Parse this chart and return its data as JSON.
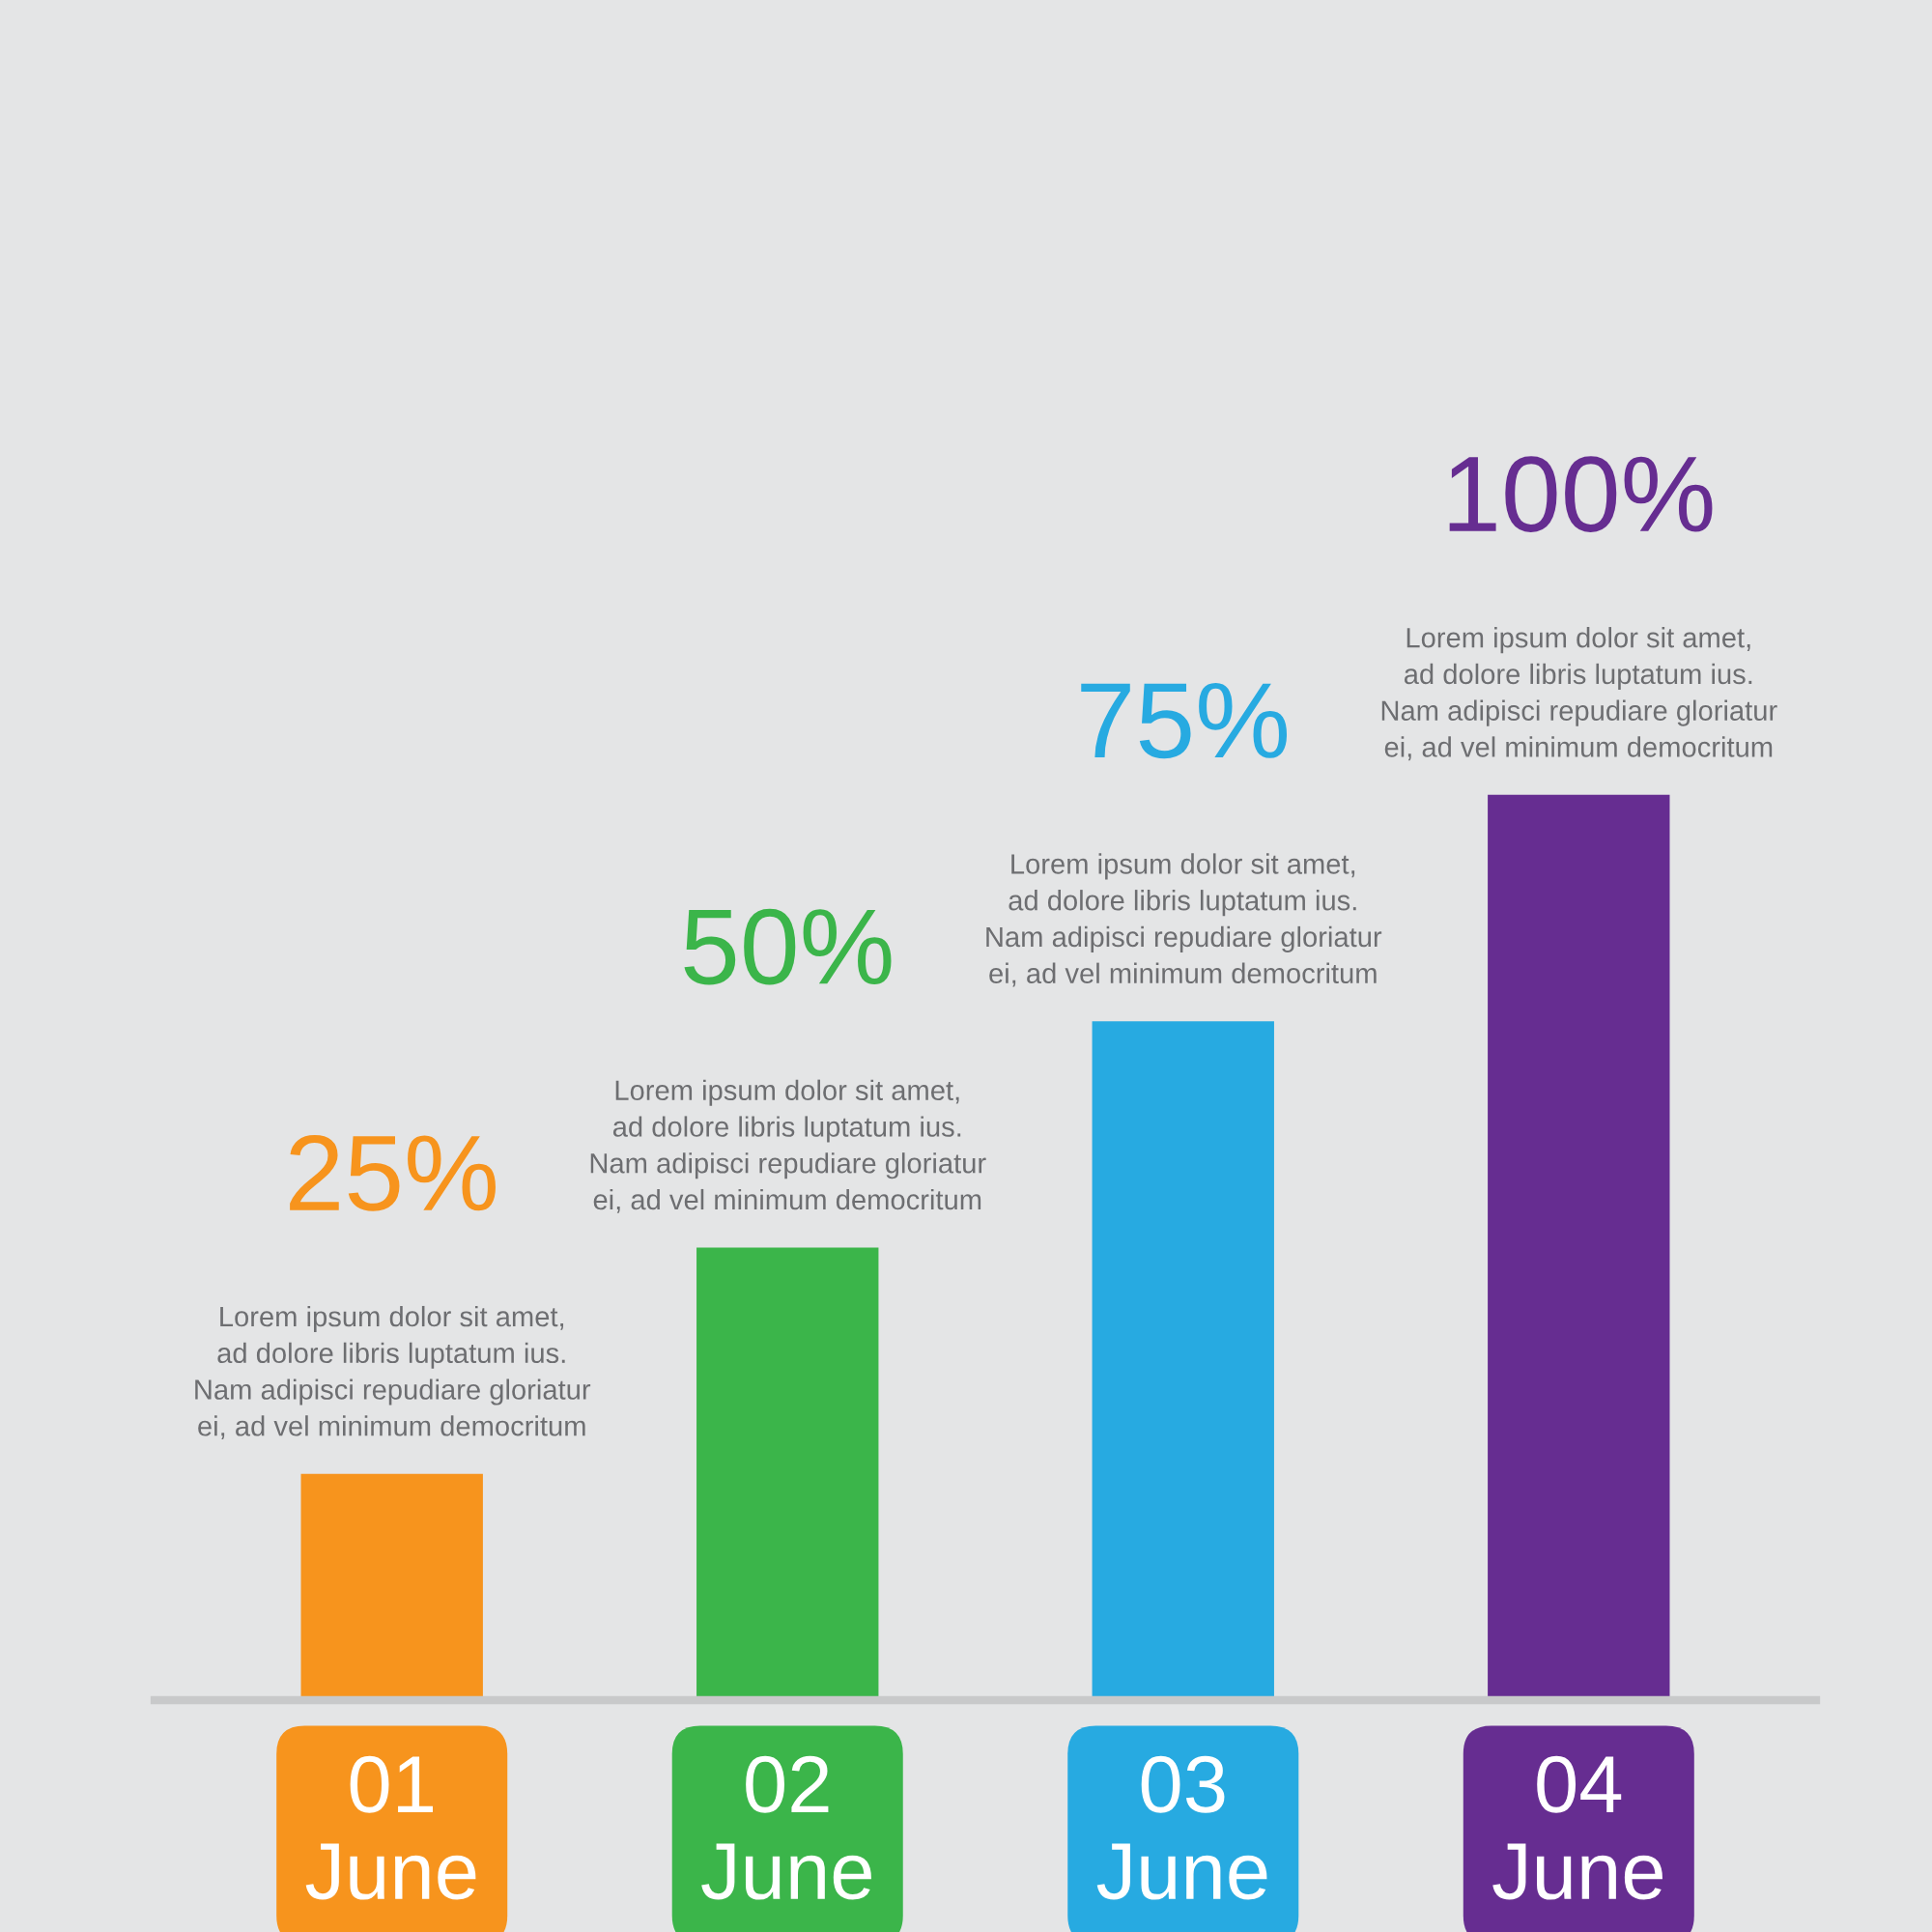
{
  "chart_data": {
    "type": "bar",
    "categories": [
      "01\nJune",
      "02\nJune",
      "03\nJune",
      "04\nJune"
    ],
    "values": [
      25,
      50,
      75,
      100
    ],
    "colors": [
      "#f7941d",
      "#3bb54a",
      "#27aae1",
      "#662d91"
    ],
    "value_labels": [
      "25%",
      "50%",
      "75%",
      "100%"
    ],
    "tick_labels": "x",
    "annotations": [
      "Lorem ipsum dolor sit amet,\nad dolore libris luptatum ius.\nNam adipisci repudiare gloriatur\nei, ad vel minimum democritum",
      "Lorem ipsum dolor sit amet,\nad dolore libris luptatum ius.\nNam adipisci repudiare gloriatur\nei, ad vel minimum democritum",
      "Lorem ipsum dolor sit amet,\nad dolore libris luptatum ius.\nNam adipisci repudiare gloriatur\nei, ad vel minimum democritum",
      "Lorem ipsum dolor sit amet,\nad dolore libris luptatum ius.\nNam adipisci repudiare gloriatur\nei, ad vel minimum democritum"
    ]
  }
}
